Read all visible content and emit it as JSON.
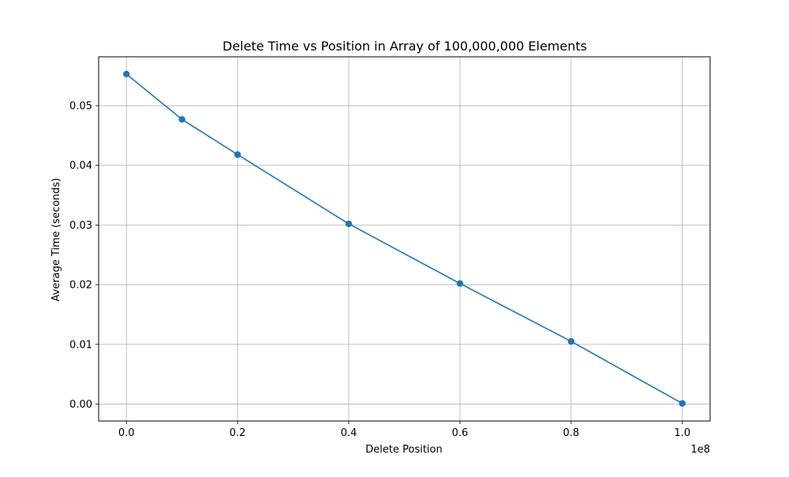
{
  "chart_data": {
    "type": "line",
    "title": "Delete Time vs Position in Array of 100,000,000 Elements",
    "xlabel": "Delete Position",
    "ylabel": "Average Time (seconds)",
    "x_offset_label": "1e8",
    "xlim": [
      -0.05,
      1.05
    ],
    "ylim": [
      -0.00285,
      0.0582
    ],
    "x_ticks": [
      0.0,
      0.2,
      0.4,
      0.6,
      0.8,
      1.0
    ],
    "x_tick_labels": [
      "0.0",
      "0.2",
      "0.4",
      "0.6",
      "0.8",
      "1.0"
    ],
    "y_ticks": [
      0.0,
      0.01,
      0.02,
      0.03,
      0.04,
      0.05
    ],
    "y_tick_labels": [
      "0.00",
      "0.01",
      "0.02",
      "0.03",
      "0.04",
      "0.05"
    ],
    "grid": true,
    "color": "#1f77b4",
    "series": [
      {
        "x": [
          0.0,
          0.1,
          0.2,
          0.4,
          0.6,
          0.8,
          1.0
        ],
        "y": [
          0.0553,
          0.0477,
          0.0418,
          0.0302,
          0.0202,
          0.0105,
          0.0001
        ]
      }
    ]
  }
}
